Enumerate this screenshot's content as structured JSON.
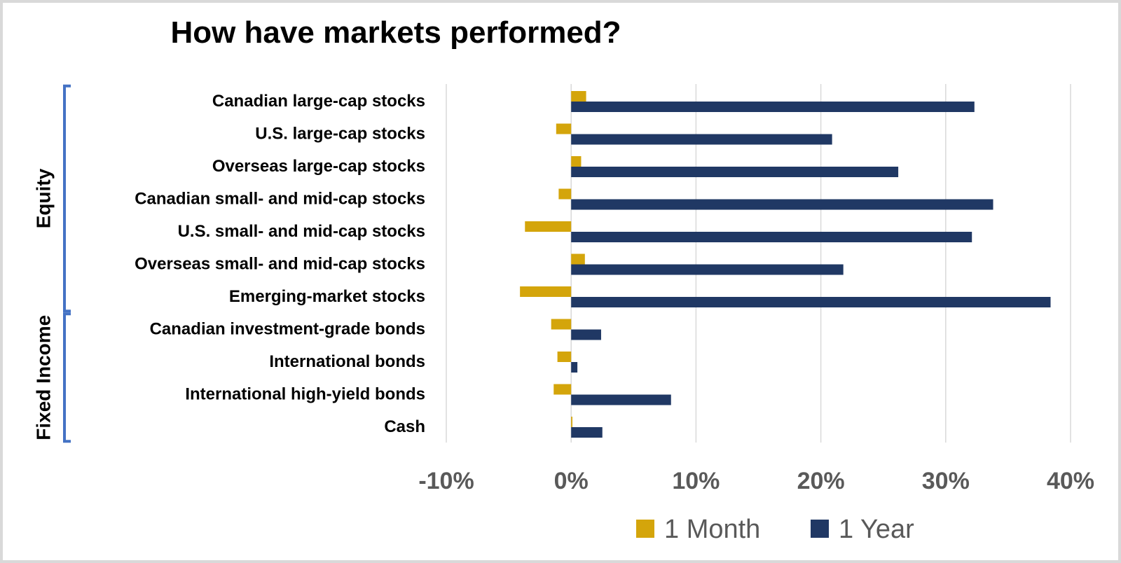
{
  "chart_data": {
    "type": "bar",
    "orientation": "horizontal",
    "title": "How have markets performed?",
    "categories": [
      "Canadian large-cap stocks",
      "U.S. large-cap stocks",
      "Overseas large-cap stocks",
      "Canadian small- and mid-cap stocks",
      "U.S. small- and mid-cap stocks",
      "Overseas small- and mid-cap stocks",
      "Emerging-market stocks",
      "Canadian investment-grade bonds",
      "International bonds",
      "International high-yield bonds",
      "Cash"
    ],
    "series": [
      {
        "name": "1 Month",
        "color": "#D4A50B",
        "values": [
          1.2,
          -1.2,
          0.8,
          -1.0,
          -3.7,
          1.1,
          -4.1,
          -1.6,
          -1.1,
          -1.4,
          0.1
        ]
      },
      {
        "name": "1 Year",
        "color": "#203864",
        "values": [
          32.3,
          20.9,
          26.2,
          33.8,
          32.1,
          21.8,
          38.4,
          2.4,
          0.5,
          8.0,
          2.5
        ]
      }
    ],
    "xlim": [
      -10,
      40
    ],
    "xticks": [
      -10,
      0,
      10,
      20,
      30,
      40
    ],
    "xtick_labels": [
      "-10%",
      "0%",
      "10%",
      "20%",
      "30%",
      "40%"
    ],
    "groups": [
      {
        "label": "Equity",
        "from": 0,
        "to": 6
      },
      {
        "label": "Fixed Income",
        "from": 7,
        "to": 10
      }
    ],
    "grid": true,
    "legend_position": "bottom"
  }
}
